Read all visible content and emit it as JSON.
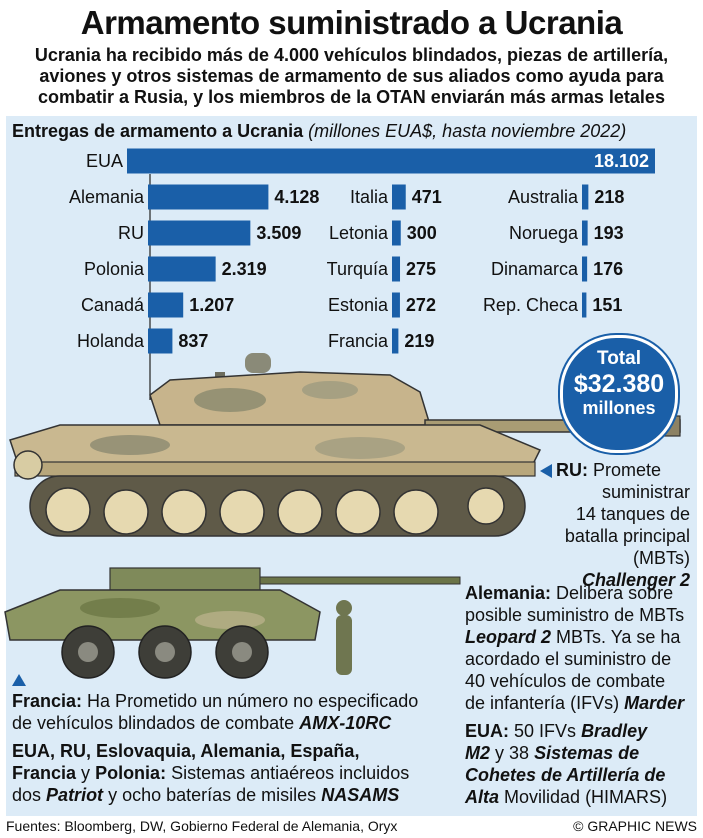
{
  "header": {
    "title": "Armamento suministrado a Ucrania",
    "subtitle": "Ucrania ha recibido más de 4.000 vehículos blindados, piezas de artillería, aviones y otros sistemas de armamento de sus aliados como ayuda para combatir a Rusia, y los miembros de la OTAN enviarán más armas letales"
  },
  "chart_data": {
    "type": "bar",
    "title": "Entregas de armamento a Ucrania",
    "subtitle": "(millones EUA$, hasta noviembre 2022)",
    "unit": "millones EUA$",
    "orientation": "horizontal",
    "categories": [
      "EUA",
      "Alemania",
      "RU",
      "Polonia",
      "Canadá",
      "Holanda",
      "Italia",
      "Letonia",
      "Turquía",
      "Estonia",
      "Francia",
      "Australia",
      "Noruega",
      "Dinamarca",
      "Rep. Checa"
    ],
    "values": [
      18102,
      4128,
      3509,
      2319,
      1207,
      837,
      471,
      300,
      275,
      272,
      219,
      218,
      193,
      176,
      151
    ],
    "labels": [
      "18.102",
      "4.128",
      "3.509",
      "2.319",
      "1.207",
      "837",
      "471",
      "300",
      "275",
      "272",
      "219",
      "218",
      "193",
      "176",
      "151"
    ],
    "colors": {
      "bar": "#1a5fa8",
      "background": "#dcebf7"
    }
  },
  "total": {
    "line1": "Total",
    "line2": "$32.380",
    "line3": "millones"
  },
  "notes": {
    "ru": {
      "country": "RU:",
      "text1": "Promete",
      "text2": "suministrar",
      "text3": "14 tanques de",
      "text4": "batalla principal",
      "text5": "(MBTs)",
      "weapon": "Challenger 2"
    },
    "alemania": {
      "country": "Alemania:",
      "text1": "Delibera sobre",
      "text2": "posible suministro de MBTs",
      "weapon1": "Leopard 2",
      "text3": "MBTs. Ya se ha",
      "text4": "acordado el suministro de",
      "text5": "40 vehículos de combate",
      "text6": "de infantería (IFVs)",
      "weapon2": "Marder"
    },
    "eua": {
      "country": "EUA:",
      "text1": "50 IFVs",
      "weapon1a": "Bradley",
      "weapon1b": "M2",
      "text2": "y 38",
      "weapon2a": "Sistemas de",
      "weapon2b": "Cohetes de Artillería de",
      "weapon2c": "Alta",
      "text3": "Movilidad (HIMARS)"
    },
    "francia": {
      "country": "Francia:",
      "text1": "Ha Prometido un número no especificado",
      "text2": "de vehículos blindados de combate",
      "weapon": "AMX-10RC"
    },
    "aa": {
      "countries1": "EUA, RU, Eslovaquia, Alemania, España,",
      "countries2": "Francia",
      "and": "y",
      "countries3": "Polonia:",
      "text1": "Sistemas antiaéreos incluidos",
      "text2": "dos",
      "weapon1": "Patriot",
      "text3": "y ocho baterías de misiles",
      "weapon2": "NASAMS"
    }
  },
  "footer": {
    "sources": "Fuentes: Bloomberg, DW, Gobierno Federal de Alemania, Oryx",
    "copyright": "© GRAPHIC NEWS"
  }
}
